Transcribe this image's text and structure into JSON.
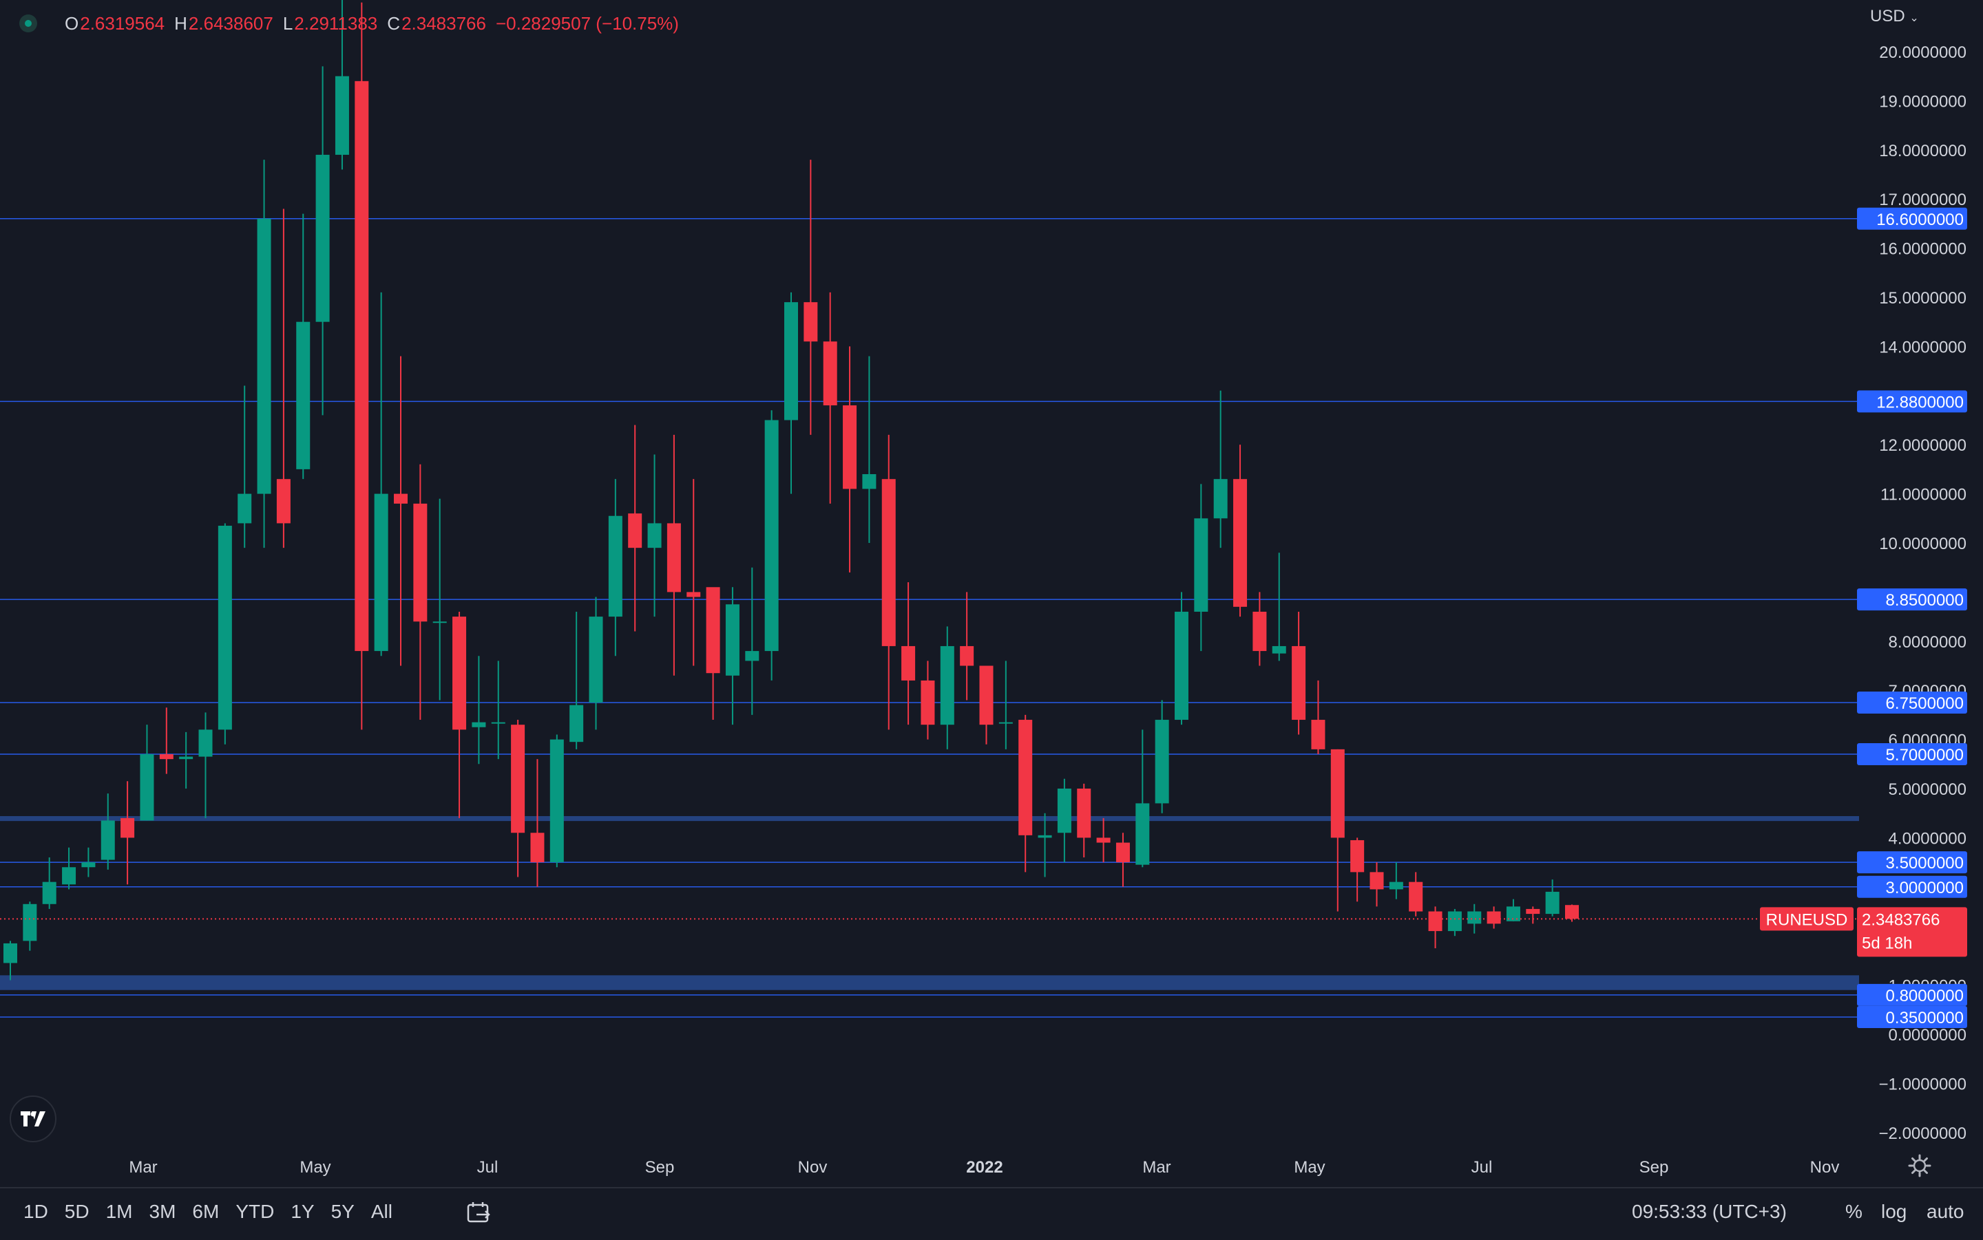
{
  "ohlc": {
    "o_label": "O",
    "o_value": "2.6319564",
    "h_label": "H",
    "h_value": "2.6438607",
    "l_label": "L",
    "l_value": "2.2911383",
    "c_label": "C",
    "c_value": "2.3483766",
    "change": "−0.2829507 (−10.75%)"
  },
  "currency_label": "USD",
  "ranges": [
    "1D",
    "5D",
    "1M",
    "3M",
    "6M",
    "YTD",
    "1Y",
    "5Y",
    "All"
  ],
  "clock": "09:53:33 (UTC+3)",
  "options": {
    "percent": "%",
    "log": "log",
    "auto": "auto"
  },
  "colors": {
    "background": "#151924",
    "up": "#089981",
    "down": "#f23645",
    "level": "#2962ff",
    "zone": "#24427f"
  },
  "chart_data": {
    "type": "candlestick",
    "symbol": "RUNEUSD",
    "last_price": "2.3483766",
    "countdown": "5d 18h",
    "ylim": [
      -2.4,
      20.7
    ],
    "yticks": [
      "20.0000000",
      "19.0000000",
      "18.0000000",
      "17.0000000",
      "16.0000000",
      "15.0000000",
      "14.0000000",
      "12.0000000",
      "11.0000000",
      "10.0000000",
      "8.0000000",
      "7.0000000",
      "6.0000000",
      "5.0000000",
      "4.0000000",
      "1.0000000",
      "0.0000000",
      "−1.0000000",
      "−2.0000000"
    ],
    "xticks": [
      "Mar",
      "May",
      "Jul",
      "Sep",
      "Nov",
      "2022",
      "Mar",
      "May",
      "Jul",
      "Sep",
      "Nov"
    ],
    "levels": [
      "16.6000000",
      "12.8800000",
      "8.8500000",
      "6.7500000",
      "5.7000000",
      "3.5000000",
      "3.0000000",
      "0.8000000",
      "0.3500000"
    ],
    "zones": [
      [
        4.34,
        4.44
      ],
      [
        0.9,
        1.2
      ]
    ],
    "candles": [
      [
        1.45,
        1.85,
        1.1,
        1.9
      ],
      [
        1.9,
        2.65,
        1.7,
        2.7
      ],
      [
        2.65,
        3.1,
        2.55,
        3.6
      ],
      [
        3.05,
        3.4,
        2.95,
        3.8
      ],
      [
        3.4,
        3.5,
        3.2,
        3.8
      ],
      [
        3.55,
        4.35,
        3.35,
        4.9
      ],
      [
        4.4,
        4.0,
        3.05,
        5.15
      ],
      [
        4.35,
        5.7,
        4.35,
        6.3
      ],
      [
        5.7,
        5.6,
        5.3,
        6.65
      ],
      [
        5.6,
        5.65,
        5.0,
        6.15
      ],
      [
        5.65,
        6.2,
        4.4,
        6.55
      ],
      [
        6.2,
        10.35,
        5.9,
        10.4
      ],
      [
        10.4,
        11.0,
        9.9,
        13.2
      ],
      [
        11.0,
        16.6,
        9.9,
        17.8
      ],
      [
        11.3,
        10.4,
        9.9,
        16.8
      ],
      [
        11.5,
        14.5,
        11.3,
        16.7
      ],
      [
        14.5,
        17.9,
        12.6,
        19.7
      ],
      [
        17.9,
        19.5,
        17.6,
        21.5
      ],
      [
        19.4,
        7.8,
        6.2,
        21.0
      ],
      [
        7.8,
        11.0,
        7.7,
        15.1
      ],
      [
        11.0,
        10.8,
        7.5,
        13.8
      ],
      [
        10.8,
        8.4,
        6.4,
        11.6
      ],
      [
        8.4,
        8.4,
        6.8,
        10.9
      ],
      [
        8.5,
        6.2,
        4.4,
        8.6
      ],
      [
        6.25,
        6.35,
        5.5,
        7.7
      ],
      [
        6.35,
        6.35,
        5.6,
        7.6
      ],
      [
        6.3,
        4.1,
        3.2,
        6.4
      ],
      [
        4.1,
        3.5,
        3.0,
        5.6
      ],
      [
        3.5,
        6.0,
        3.4,
        6.1
      ],
      [
        5.95,
        6.7,
        5.8,
        8.6
      ],
      [
        6.75,
        8.5,
        6.2,
        8.9
      ],
      [
        8.5,
        10.55,
        7.7,
        11.3
      ],
      [
        10.6,
        9.9,
        8.2,
        12.4
      ],
      [
        9.9,
        10.4,
        8.5,
        11.8
      ],
      [
        10.4,
        9.0,
        7.3,
        12.2
      ],
      [
        9.0,
        8.9,
        7.5,
        11.3
      ],
      [
        9.1,
        7.35,
        6.4,
        8.9
      ],
      [
        7.3,
        8.75,
        6.3,
        9.1
      ],
      [
        7.6,
        7.8,
        6.5,
        9.5
      ],
      [
        7.8,
        12.5,
        7.2,
        12.7
      ],
      [
        12.5,
        14.9,
        11.0,
        15.1
      ],
      [
        14.9,
        14.1,
        12.2,
        17.8
      ],
      [
        14.1,
        12.8,
        10.8,
        15.1
      ],
      [
        12.8,
        11.1,
        9.4,
        14.0
      ],
      [
        11.1,
        11.4,
        10.0,
        13.8
      ],
      [
        11.3,
        7.9,
        6.2,
        12.2
      ],
      [
        7.9,
        7.2,
        6.3,
        9.2
      ],
      [
        7.2,
        6.3,
        6.0,
        7.6
      ],
      [
        6.3,
        7.9,
        5.8,
        8.3
      ],
      [
        7.9,
        7.5,
        6.8,
        9.0
      ],
      [
        7.5,
        6.3,
        5.9,
        7.5
      ],
      [
        6.35,
        6.35,
        5.8,
        7.6
      ],
      [
        6.4,
        4.05,
        3.3,
        6.5
      ],
      [
        4.0,
        4.05,
        3.2,
        4.5
      ],
      [
        4.1,
        5.0,
        3.5,
        5.2
      ],
      [
        5.0,
        4.0,
        3.6,
        5.1
      ],
      [
        4.0,
        3.9,
        3.5,
        4.4
      ],
      [
        3.9,
        3.5,
        3.0,
        4.1
      ],
      [
        3.45,
        4.7,
        3.4,
        6.2
      ],
      [
        4.7,
        6.4,
        4.5,
        6.8
      ],
      [
        6.4,
        8.6,
        6.3,
        9.0
      ],
      [
        8.6,
        10.5,
        7.8,
        11.2
      ],
      [
        10.5,
        11.3,
        9.9,
        13.1
      ],
      [
        11.3,
        8.7,
        8.5,
        12.0
      ],
      [
        8.6,
        7.8,
        7.5,
        9.0
      ],
      [
        7.75,
        7.9,
        7.6,
        9.8
      ],
      [
        7.9,
        6.4,
        6.1,
        8.6
      ],
      [
        6.4,
        5.8,
        5.7,
        7.2
      ],
      [
        5.8,
        4.0,
        2.5,
        5.8
      ],
      [
        3.95,
        3.3,
        2.7,
        4.0
      ],
      [
        3.3,
        2.95,
        2.6,
        3.5
      ],
      [
        2.95,
        3.1,
        2.75,
        3.5
      ],
      [
        3.1,
        2.5,
        2.4,
        3.3
      ],
      [
        2.5,
        2.1,
        1.75,
        2.6
      ],
      [
        2.1,
        2.5,
        2.0,
        2.55
      ],
      [
        2.25,
        2.5,
        2.05,
        2.65
      ],
      [
        2.5,
        2.25,
        2.15,
        2.6
      ],
      [
        2.3,
        2.6,
        2.3,
        2.75
      ],
      [
        2.55,
        2.45,
        2.25,
        2.6
      ],
      [
        2.45,
        2.9,
        2.4,
        3.15
      ],
      [
        2.63,
        2.35,
        2.29,
        2.64
      ]
    ]
  }
}
